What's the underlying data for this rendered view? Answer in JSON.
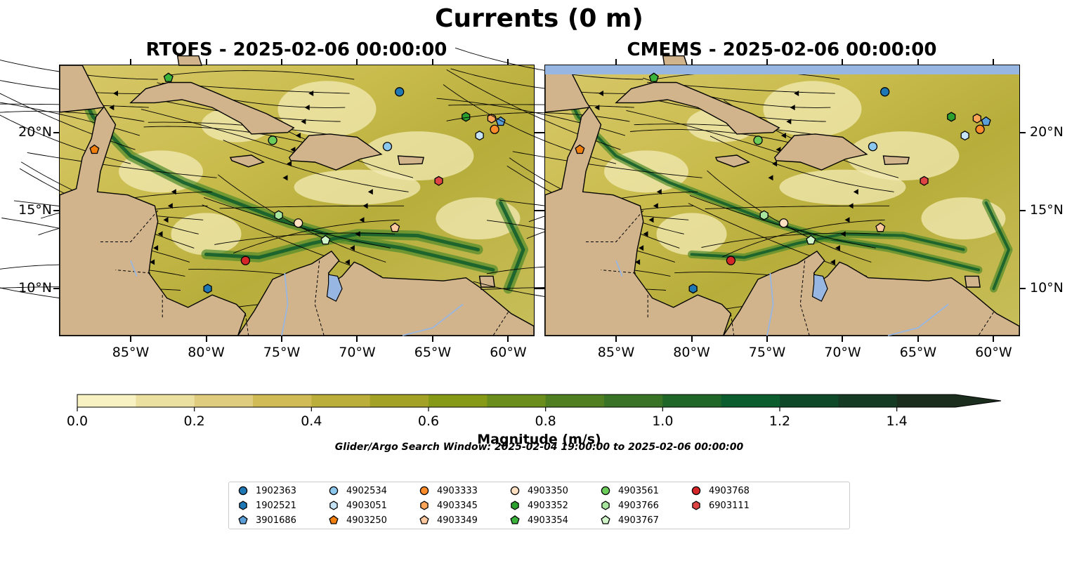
{
  "figure": {
    "title": "Currents (0 m)",
    "panels": [
      {
        "name": "rtofs",
        "title": "RTOFS - 2025-02-06 00:00:00"
      },
      {
        "name": "cmems",
        "title": "CMEMS - 2025-02-06 00:00:00"
      }
    ],
    "lon_ticks": [
      "85°W",
      "80°W",
      "75°W",
      "70°W",
      "65°W",
      "60°W"
    ],
    "lat_ticks": [
      "20°N",
      "15°N",
      "10°N"
    ]
  },
  "map_extent": {
    "lon_min": -89.7,
    "lon_max": -58.3,
    "lat_min": 7.0,
    "lat_max": 24.3
  },
  "tick_values": {
    "lon": [
      -85,
      -80,
      -75,
      -70,
      -65,
      -60
    ],
    "lat": [
      20,
      15,
      10
    ]
  },
  "colorbar": {
    "label": "Magnitude (m/s)",
    "ticks": [
      "0.0",
      "0.2",
      "0.4",
      "0.6",
      "0.8",
      "1.0",
      "1.2",
      "1.4"
    ],
    "min": 0.0,
    "max": 1.5,
    "extend": "max",
    "colors": [
      "#f8f2c2",
      "#ece0a0",
      "#e0cc7e",
      "#d1bb57",
      "#bcae3a",
      "#a3a126",
      "#879a18",
      "#6a8d1c",
      "#507f21",
      "#387326",
      "#1f6629",
      "#0b5d2d",
      "#0e4a2a",
      "#163b25",
      "#1b2d1d"
    ]
  },
  "search_window": "Glider/Argo Search Window: 2025-02-04 19:00:00 to 2025-02-06 00:00:00",
  "legend": [
    {
      "id": "1902363",
      "marker": "circle",
      "color": "#1f77b4"
    },
    {
      "id": "1902521",
      "marker": "hexagon",
      "color": "#1f77b4"
    },
    {
      "id": "3901686",
      "marker": "pentagon",
      "color": "#5b9fd8"
    },
    {
      "id": "4902534",
      "marker": "circle",
      "color": "#8cc7ee"
    },
    {
      "id": "4903051",
      "marker": "hexagon",
      "color": "#c6e3f7"
    },
    {
      "id": "4903250",
      "marker": "pentagon",
      "color": "#f07f0e"
    },
    {
      "id": "4903333",
      "marker": "circle",
      "color": "#ff8c2a"
    },
    {
      "id": "4903345",
      "marker": "hexagon",
      "color": "#ffa559"
    },
    {
      "id": "4903349",
      "marker": "pentagon",
      "color": "#ffc9a0"
    },
    {
      "id": "4903350",
      "marker": "circle",
      "color": "#ffe0c0"
    },
    {
      "id": "4903352",
      "marker": "hexagon",
      "color": "#2ca02c"
    },
    {
      "id": "4903354",
      "marker": "pentagon",
      "color": "#3cb43c"
    },
    {
      "id": "4903561",
      "marker": "circle",
      "color": "#6ccc5a"
    },
    {
      "id": "4903766",
      "marker": "hexagon",
      "color": "#a8e6a0"
    },
    {
      "id": "4903767",
      "marker": "pentagon",
      "color": "#cff5c8"
    },
    {
      "id": "4903768",
      "marker": "circle",
      "color": "#d62728"
    },
    {
      "id": "6903111",
      "marker": "hexagon",
      "color": "#de4444"
    }
  ],
  "observations": [
    {
      "id": "1902363",
      "lon": -67.2,
      "lat": 22.6,
      "cm_lon": -67.2,
      "cm_lat": 22.6
    },
    {
      "id": "3901686",
      "lon": -60.5,
      "lat": 20.7,
      "cm_lon": -60.5,
      "cm_lat": 20.7
    },
    {
      "id": "4903345",
      "lon": -61.1,
      "lat": 20.9,
      "cm_lon": -61.1,
      "cm_lat": 20.9
    },
    {
      "id": "4903333",
      "lon": -60.9,
      "lat": 20.2,
      "cm_lon": -60.9,
      "cm_lat": 20.2
    },
    {
      "id": "4903051",
      "lon": -61.9,
      "lat": 19.8,
      "cm_lon": -61.9,
      "cm_lat": 19.8
    },
    {
      "id": "4903352",
      "lon": -62.8,
      "lat": 21.0,
      "cm_lon": -62.8,
      "cm_lat": 21.0
    },
    {
      "id": "4902534",
      "lon": -68.0,
      "lat": 19.1,
      "cm_lon": -68.0,
      "cm_lat": 19.1
    },
    {
      "id": "4903561",
      "lon": -75.6,
      "lat": 19.5,
      "cm_lon": -75.6,
      "cm_lat": 19.5
    },
    {
      "id": "4903354",
      "lon": -82.5,
      "lat": 23.5,
      "cm_lon": -82.5,
      "cm_lat": 23.5
    },
    {
      "id": "4903250",
      "lon": -87.4,
      "lat": 18.9,
      "cm_lon": -87.4,
      "cm_lat": 18.9
    },
    {
      "id": "6903111",
      "lon": -64.6,
      "lat": 16.9,
      "cm_lon": -64.6,
      "cm_lat": 16.9
    },
    {
      "id": "4903766",
      "lon": -75.2,
      "lat": 14.7,
      "cm_lon": -75.2,
      "cm_lat": 14.7
    },
    {
      "id": "4903350",
      "lon": -73.9,
      "lat": 14.2,
      "cm_lon": -73.9,
      "cm_lat": 14.2
    },
    {
      "id": "4903349",
      "lon": -67.5,
      "lat": 13.9,
      "cm_lon": -67.5,
      "cm_lat": 13.9
    },
    {
      "id": "4903767",
      "lon": -72.1,
      "lat": 13.1,
      "cm_lon": -72.1,
      "cm_lat": 13.1
    },
    {
      "id": "4903768",
      "lon": -77.4,
      "lat": 11.8,
      "cm_lon": -77.4,
      "cm_lat": 11.8
    },
    {
      "id": "1902521",
      "lon": -79.9,
      "lat": 10.0,
      "cm_lon": -79.9,
      "cm_lat": 10.0
    }
  ]
}
